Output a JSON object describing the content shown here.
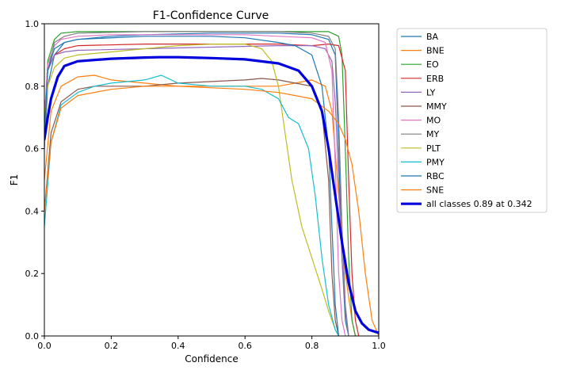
{
  "chart_data": {
    "type": "line",
    "title": "F1-Confidence Curve",
    "xlabel": "Confidence",
    "ylabel": "F1",
    "xlim": [
      0,
      1
    ],
    "ylim": [
      0,
      1
    ],
    "xticks": [
      "0.0",
      "0.2",
      "0.4",
      "0.6",
      "0.8",
      "1.0"
    ],
    "yticks": [
      "0.0",
      "0.2",
      "0.4",
      "0.6",
      "0.8",
      "1.0"
    ],
    "grid": false,
    "legend_position": "outside-right",
    "series": [
      {
        "name": "BA",
        "color": "#1f77b4",
        "width": 1.2,
        "points": [
          [
            0,
            0.6
          ],
          [
            0.01,
            0.8
          ],
          [
            0.03,
            0.9
          ],
          [
            0.06,
            0.94
          ],
          [
            0.1,
            0.95
          ],
          [
            0.2,
            0.96
          ],
          [
            0.3,
            0.965
          ],
          [
            0.5,
            0.97
          ],
          [
            0.7,
            0.97
          ],
          [
            0.8,
            0.965
          ],
          [
            0.85,
            0.95
          ],
          [
            0.87,
            0.9
          ],
          [
            0.88,
            0.6
          ],
          [
            0.89,
            0.25
          ],
          [
            0.9,
            0.05
          ],
          [
            0.91,
            0.0
          ]
        ]
      },
      {
        "name": "BNE",
        "color": "#ff7f0e",
        "width": 1.2,
        "points": [
          [
            0,
            0.5
          ],
          [
            0.02,
            0.72
          ],
          [
            0.05,
            0.8
          ],
          [
            0.1,
            0.83
          ],
          [
            0.15,
            0.835
          ],
          [
            0.2,
            0.82
          ],
          [
            0.3,
            0.81
          ],
          [
            0.4,
            0.8
          ],
          [
            0.5,
            0.8
          ],
          [
            0.6,
            0.8
          ],
          [
            0.7,
            0.8
          ],
          [
            0.75,
            0.81
          ],
          [
            0.8,
            0.82
          ],
          [
            0.84,
            0.8
          ],
          [
            0.86,
            0.72
          ],
          [
            0.88,
            0.45
          ],
          [
            0.9,
            0.2
          ],
          [
            0.92,
            0.05
          ],
          [
            0.93,
            0.0
          ]
        ]
      },
      {
        "name": "EO",
        "color": "#2ca02c",
        "width": 1.2,
        "points": [
          [
            0,
            0.65
          ],
          [
            0.01,
            0.88
          ],
          [
            0.03,
            0.95
          ],
          [
            0.05,
            0.97
          ],
          [
            0.1,
            0.975
          ],
          [
            0.3,
            0.975
          ],
          [
            0.5,
            0.975
          ],
          [
            0.7,
            0.975
          ],
          [
            0.8,
            0.975
          ],
          [
            0.85,
            0.975
          ],
          [
            0.88,
            0.96
          ],
          [
            0.89,
            0.9
          ],
          [
            0.9,
            0.6
          ],
          [
            0.91,
            0.25
          ],
          [
            0.92,
            0.05
          ],
          [
            0.93,
            0.0
          ]
        ]
      },
      {
        "name": "ERB",
        "color": "#d62728",
        "width": 1.2,
        "points": [
          [
            0,
            0.7
          ],
          [
            0.01,
            0.85
          ],
          [
            0.03,
            0.9
          ],
          [
            0.06,
            0.92
          ],
          [
            0.1,
            0.93
          ],
          [
            0.3,
            0.935
          ],
          [
            0.5,
            0.935
          ],
          [
            0.7,
            0.935
          ],
          [
            0.8,
            0.93
          ],
          [
            0.85,
            0.935
          ],
          [
            0.88,
            0.93
          ],
          [
            0.9,
            0.85
          ],
          [
            0.91,
            0.5
          ],
          [
            0.92,
            0.2
          ],
          [
            0.93,
            0.05
          ],
          [
            0.94,
            0.0
          ]
        ]
      },
      {
        "name": "LY",
        "color": "#9467bd",
        "width": 1.2,
        "points": [
          [
            0,
            0.7
          ],
          [
            0.01,
            0.85
          ],
          [
            0.03,
            0.9
          ],
          [
            0.06,
            0.91
          ],
          [
            0.1,
            0.915
          ],
          [
            0.3,
            0.92
          ],
          [
            0.5,
            0.925
          ],
          [
            0.7,
            0.93
          ],
          [
            0.8,
            0.93
          ],
          [
            0.84,
            0.92
          ],
          [
            0.86,
            0.88
          ],
          [
            0.87,
            0.75
          ],
          [
            0.88,
            0.5
          ],
          [
            0.89,
            0.25
          ],
          [
            0.9,
            0.08
          ],
          [
            0.91,
            0.0
          ]
        ]
      },
      {
        "name": "MMY",
        "color": "#8c564b",
        "width": 1.2,
        "points": [
          [
            0,
            0.4
          ],
          [
            0.02,
            0.65
          ],
          [
            0.05,
            0.75
          ],
          [
            0.1,
            0.79
          ],
          [
            0.15,
            0.8
          ],
          [
            0.2,
            0.8
          ],
          [
            0.3,
            0.8
          ],
          [
            0.4,
            0.81
          ],
          [
            0.5,
            0.815
          ],
          [
            0.6,
            0.82
          ],
          [
            0.65,
            0.825
          ],
          [
            0.7,
            0.82
          ],
          [
            0.75,
            0.81
          ],
          [
            0.8,
            0.8
          ],
          [
            0.83,
            0.72
          ],
          [
            0.85,
            0.5
          ],
          [
            0.86,
            0.2
          ],
          [
            0.87,
            0.05
          ],
          [
            0.88,
            0.0
          ]
        ]
      },
      {
        "name": "MO",
        "color": "#e377c2",
        "width": 1.2,
        "points": [
          [
            0,
            0.7
          ],
          [
            0.01,
            0.87
          ],
          [
            0.03,
            0.93
          ],
          [
            0.05,
            0.95
          ],
          [
            0.1,
            0.96
          ],
          [
            0.2,
            0.965
          ],
          [
            0.4,
            0.965
          ],
          [
            0.6,
            0.965
          ],
          [
            0.7,
            0.96
          ],
          [
            0.8,
            0.955
          ],
          [
            0.84,
            0.94
          ],
          [
            0.86,
            0.85
          ],
          [
            0.87,
            0.55
          ],
          [
            0.88,
            0.2
          ],
          [
            0.89,
            0.05
          ],
          [
            0.9,
            0.0
          ]
        ]
      },
      {
        "name": "MY",
        "color": "#7f7f7f",
        "width": 1.2,
        "points": [
          [
            0,
            0.6
          ],
          [
            0.01,
            0.85
          ],
          [
            0.03,
            0.94
          ],
          [
            0.06,
            0.96
          ],
          [
            0.1,
            0.97
          ],
          [
            0.3,
            0.975
          ],
          [
            0.5,
            0.975
          ],
          [
            0.7,
            0.975
          ],
          [
            0.8,
            0.97
          ],
          [
            0.85,
            0.96
          ],
          [
            0.87,
            0.92
          ],
          [
            0.88,
            0.7
          ],
          [
            0.89,
            0.35
          ],
          [
            0.9,
            0.1
          ],
          [
            0.91,
            0.0
          ]
        ]
      },
      {
        "name": "PLT",
        "color": "#bcbd22",
        "width": 1.2,
        "points": [
          [
            0,
            0.7
          ],
          [
            0.01,
            0.8
          ],
          [
            0.03,
            0.86
          ],
          [
            0.06,
            0.89
          ],
          [
            0.1,
            0.9
          ],
          [
            0.2,
            0.91
          ],
          [
            0.3,
            0.92
          ],
          [
            0.4,
            0.93
          ],
          [
            0.5,
            0.935
          ],
          [
            0.6,
            0.935
          ],
          [
            0.65,
            0.92
          ],
          [
            0.68,
            0.88
          ],
          [
            0.7,
            0.8
          ],
          [
            0.72,
            0.65
          ],
          [
            0.74,
            0.5
          ],
          [
            0.77,
            0.35
          ],
          [
            0.8,
            0.25
          ],
          [
            0.83,
            0.15
          ],
          [
            0.85,
            0.08
          ],
          [
            0.87,
            0.02
          ],
          [
            0.88,
            0.0
          ]
        ]
      },
      {
        "name": "PMY",
        "color": "#17becf",
        "width": 1.2,
        "points": [
          [
            0,
            0.35
          ],
          [
            0.02,
            0.62
          ],
          [
            0.05,
            0.74
          ],
          [
            0.1,
            0.78
          ],
          [
            0.15,
            0.8
          ],
          [
            0.2,
            0.81
          ],
          [
            0.3,
            0.82
          ],
          [
            0.35,
            0.835
          ],
          [
            0.4,
            0.81
          ],
          [
            0.5,
            0.8
          ],
          [
            0.6,
            0.8
          ],
          [
            0.65,
            0.79
          ],
          [
            0.7,
            0.76
          ],
          [
            0.73,
            0.7
          ],
          [
            0.76,
            0.68
          ],
          [
            0.79,
            0.6
          ],
          [
            0.81,
            0.45
          ],
          [
            0.83,
            0.25
          ],
          [
            0.85,
            0.1
          ],
          [
            0.87,
            0.02
          ],
          [
            0.88,
            0.0
          ]
        ]
      },
      {
        "name": "RBC",
        "color": "#1f77b4",
        "width": 1.2,
        "points": [
          [
            0,
            0.65
          ],
          [
            0.01,
            0.85
          ],
          [
            0.03,
            0.92
          ],
          [
            0.06,
            0.94
          ],
          [
            0.1,
            0.95
          ],
          [
            0.3,
            0.96
          ],
          [
            0.5,
            0.96
          ],
          [
            0.6,
            0.955
          ],
          [
            0.7,
            0.94
          ],
          [
            0.75,
            0.93
          ],
          [
            0.8,
            0.9
          ],
          [
            0.83,
            0.8
          ],
          [
            0.85,
            0.6
          ],
          [
            0.86,
            0.35
          ],
          [
            0.87,
            0.1
          ],
          [
            0.88,
            0.0
          ]
        ]
      },
      {
        "name": "SNE",
        "color": "#ff7f0e",
        "width": 1.2,
        "points": [
          [
            0,
            0.4
          ],
          [
            0.02,
            0.62
          ],
          [
            0.05,
            0.73
          ],
          [
            0.1,
            0.77
          ],
          [
            0.2,
            0.79
          ],
          [
            0.3,
            0.8
          ],
          [
            0.4,
            0.8
          ],
          [
            0.5,
            0.795
          ],
          [
            0.6,
            0.79
          ],
          [
            0.7,
            0.78
          ],
          [
            0.75,
            0.77
          ],
          [
            0.8,
            0.76
          ],
          [
            0.85,
            0.72
          ],
          [
            0.88,
            0.68
          ],
          [
            0.9,
            0.63
          ],
          [
            0.92,
            0.55
          ],
          [
            0.94,
            0.4
          ],
          [
            0.96,
            0.2
          ],
          [
            0.98,
            0.05
          ],
          [
            1.0,
            0.0
          ]
        ]
      },
      {
        "name": "all classes 0.89 at 0.342",
        "color": "#0000dd",
        "width": 3.2,
        "points": [
          [
            0,
            0.63
          ],
          [
            0.01,
            0.7
          ],
          [
            0.02,
            0.76
          ],
          [
            0.04,
            0.83
          ],
          [
            0.06,
            0.865
          ],
          [
            0.1,
            0.88
          ],
          [
            0.2,
            0.888
          ],
          [
            0.3,
            0.892
          ],
          [
            0.342,
            0.893
          ],
          [
            0.4,
            0.893
          ],
          [
            0.5,
            0.89
          ],
          [
            0.6,
            0.886
          ],
          [
            0.7,
            0.873
          ],
          [
            0.76,
            0.85
          ],
          [
            0.8,
            0.8
          ],
          [
            0.83,
            0.72
          ],
          [
            0.85,
            0.6
          ],
          [
            0.87,
            0.45
          ],
          [
            0.89,
            0.3
          ],
          [
            0.91,
            0.17
          ],
          [
            0.93,
            0.08
          ],
          [
            0.95,
            0.04
          ],
          [
            0.97,
            0.02
          ],
          [
            1.0,
            0.01
          ]
        ]
      }
    ]
  }
}
